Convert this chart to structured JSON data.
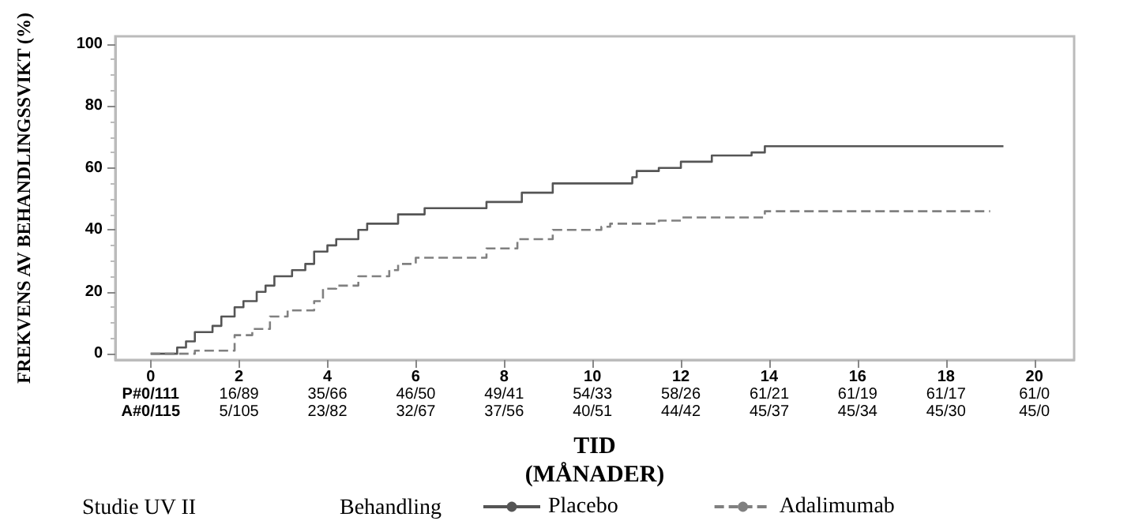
{
  "chart_data": {
    "type": "step",
    "xlabel": "TID\n(MÅNADER)",
    "ylabel": "FREKVENS AV BEHANDLINGSSVIKT (%)",
    "legend_title": "Behandling",
    "xlim": [
      -0.8,
      20.9
    ],
    "xticks": [
      0,
      2,
      4,
      6,
      8,
      10,
      12,
      14,
      16,
      18,
      20
    ],
    "ylim": [
      -2,
      102.5
    ],
    "yticks": [
      0,
      20,
      40,
      60,
      80,
      100
    ],
    "legend": "bottom",
    "grid": false,
    "marker": "none",
    "series": [
      {
        "name": "Placebo",
        "color": "#555555",
        "line_style": "solid",
        "x": [
          0,
          0.6,
          0.8,
          1.0,
          1.4,
          1.6,
          1.9,
          2.1,
          2.4,
          2.6,
          2.8,
          3.2,
          3.5,
          3.7,
          4.0,
          4.2,
          4.7,
          4.9,
          5.6,
          6.2,
          7.6,
          8.4,
          9.1,
          10.9,
          11.0,
          11.5,
          12.0,
          12.7,
          13.6,
          13.9,
          19.3
        ],
        "values": [
          0,
          2,
          4,
          7,
          9,
          12,
          15,
          17,
          20,
          22,
          25,
          27,
          29,
          33,
          35,
          37,
          40,
          42,
          45,
          47,
          49,
          52,
          55,
          57,
          59,
          60,
          62,
          64,
          65,
          67,
          67
        ]
      },
      {
        "name": "Adalimumab",
        "color": "#808080",
        "line_style": "dashed",
        "x": [
          0,
          1.0,
          1.9,
          2.3,
          2.7,
          3.1,
          3.7,
          3.9,
          4.2,
          4.7,
          5.4,
          5.6,
          6.0,
          7.6,
          8.3,
          9.1,
          10.2,
          10.4,
          11.5,
          12.0,
          13.9,
          19.0
        ],
        "values": [
          0,
          1,
          6,
          8,
          12,
          14,
          17,
          21,
          22,
          25,
          27,
          29,
          31,
          34,
          37,
          40,
          41,
          42,
          43,
          44,
          46,
          46
        ]
      }
    ],
    "annotations": [
      "P#0/111",
      "16/89",
      "35/66",
      "46/50",
      "49/41",
      "54/33",
      "58/26",
      "61/21",
      "61/19",
      "61/17",
      "61/0",
      "A#0/115",
      "5/105",
      "23/82",
      "32/67",
      "37/56",
      "40/51",
      "44/42",
      "45/37",
      "45/34",
      "45/30",
      "45/0",
      "Studie UV II"
    ]
  }
}
